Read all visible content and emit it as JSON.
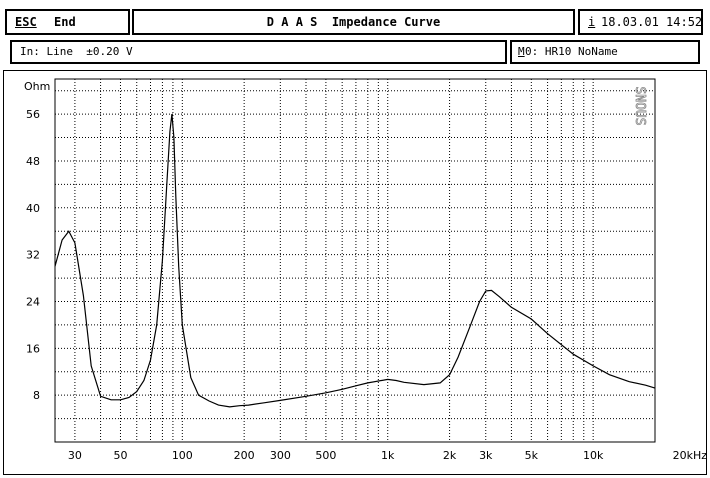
{
  "header": {
    "esc_label": "ESC",
    "end_label": "End",
    "title": "D A A S  Impedance Curve",
    "info_key": "i",
    "datetime": "18.03.01 14:52"
  },
  "subheader": {
    "input_info": "In: Line  ±0.20 V",
    "memory_key": "M",
    "memory_rest": "0: HR10 NoName"
  },
  "watermark": "SNOUS",
  "colors": {
    "line": "#000000",
    "grid": "#000000",
    "background": "#ffffff"
  },
  "chart_data": {
    "type": "line",
    "title": "D A A S  Impedance Curve",
    "xlabel": "",
    "ylabel": "Ohm",
    "xscale": "log",
    "xlim": [
      24,
      20000
    ],
    "ylim": [
      0,
      62
    ],
    "grid": true,
    "x_ticks": [
      {
        "v": 30,
        "label": "30"
      },
      {
        "v": 50,
        "label": "50"
      },
      {
        "v": 100,
        "label": "100"
      },
      {
        "v": 200,
        "label": "200"
      },
      {
        "v": 300,
        "label": "300"
      },
      {
        "v": 500,
        "label": "500"
      },
      {
        "v": 1000,
        "label": "1k"
      },
      {
        "v": 2000,
        "label": "2k"
      },
      {
        "v": 3000,
        "label": "3k"
      },
      {
        "v": 5000,
        "label": "5k"
      },
      {
        "v": 10000,
        "label": "10k"
      },
      {
        "v": 20000,
        "label": "20kHz"
      }
    ],
    "y_ticks": [
      {
        "v": 8,
        "label": "8"
      },
      {
        "v": 16,
        "label": "16"
      },
      {
        "v": 24,
        "label": "24"
      },
      {
        "v": 32,
        "label": "32"
      },
      {
        "v": 40,
        "label": "40"
      },
      {
        "v": 48,
        "label": "48"
      },
      {
        "v": 56,
        "label": "56"
      }
    ],
    "series": [
      {
        "x": [
          24,
          26,
          28,
          30,
          33,
          36,
          40,
          45,
          50,
          55,
          60,
          65,
          70,
          75,
          80,
          84,
          87,
          89,
          91,
          93,
          96,
          100,
          110,
          120,
          135,
          150,
          170,
          190,
          210,
          250,
          300,
          400,
          500,
          600,
          700,
          800,
          1000,
          1100,
          1200,
          1500,
          1800,
          2000,
          2200,
          2500,
          2800,
          3000,
          3200,
          3500,
          4000,
          5000,
          6000,
          8000,
          10000,
          12000,
          15000,
          18000,
          20000
        ],
        "y": [
          30.0,
          34.5,
          36.0,
          34.0,
          25.0,
          13.0,
          7.8,
          7.2,
          7.2,
          7.6,
          8.6,
          10.5,
          14.0,
          20.0,
          31.0,
          44.0,
          53.0,
          56.0,
          52.0,
          42.0,
          30.0,
          20.0,
          11.0,
          8.0,
          7.0,
          6.3,
          6.0,
          6.2,
          6.3,
          6.7,
          7.1,
          7.8,
          8.4,
          9.0,
          9.6,
          10.1,
          10.7,
          10.5,
          10.2,
          9.8,
          10.1,
          11.5,
          14.5,
          19.5,
          24.0,
          25.8,
          25.9,
          24.8,
          23.0,
          21.0,
          18.5,
          15.0,
          13.0,
          11.5,
          10.3,
          9.7,
          9.2
        ]
      }
    ]
  }
}
